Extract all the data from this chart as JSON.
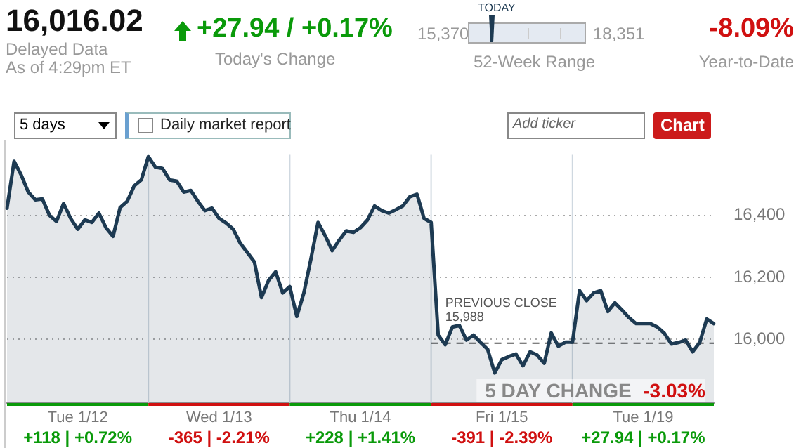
{
  "chart_data": {
    "type": "area",
    "title": "16,016.02",
    "annotations": [
      "Delayed Data",
      "As of 4:29pm ET",
      "+27.94 / +0.17%",
      "Today's Change",
      "15,370",
      "TODAY",
      "18,351",
      "52-Week Range",
      "-8.09%",
      "Year-to-Date",
      "5 days",
      "Daily market report",
      "Add ticker",
      "Chart",
      "5 DAY CHANGE",
      "-3.03%",
      "+118 | +0.72%",
      "-365 | -2.21%",
      "+228 | +1.41%",
      "-391 | -2.39%",
      "+27.94 | +0.17%"
    ],
    "categories": [
      null,
      null,
      null,
      null,
      null,
      null,
      null,
      null,
      null,
      null,
      "Tue 1/12",
      null,
      null,
      null,
      null,
      null,
      null,
      null,
      null,
      null,
      null,
      null,
      null,
      null,
      null,
      null,
      null,
      null,
      null,
      null,
      "Wed 1/13",
      null,
      null,
      null,
      null,
      null,
      null,
      null,
      null,
      null,
      null,
      null,
      null,
      null,
      null,
      null,
      null,
      null,
      null,
      null,
      "Thu 1/14",
      null,
      null,
      null,
      null,
      null,
      null,
      null,
      null,
      null,
      null,
      null,
      null,
      null,
      null,
      null,
      null,
      null,
      null,
      null,
      "Fri 1/15",
      null,
      null,
      null,
      null,
      null,
      null,
      null,
      null,
      null,
      null,
      null,
      null,
      null,
      null,
      null,
      null,
      null,
      null,
      null,
      "Tue 1/19",
      null,
      null,
      null,
      null,
      null,
      null,
      null,
      null,
      null,
      null
    ],
    "series": [
      {
        "color": "#1d3a52",
        "values": [
          16423,
          16574,
          16530,
          16475,
          16450,
          16453,
          16400,
          16380,
          16438,
          16390,
          16355,
          16385,
          16377,
          16407,
          16360,
          16332,
          16425,
          16445,
          16495,
          16514,
          16589,
          16555,
          16551,
          16514,
          16510,
          16475,
          16480,
          16445,
          16415,
          16423,
          16390,
          16375,
          16355,
          16310,
          16280,
          16250,
          16135,
          16190,
          16218,
          16150,
          16170,
          16074,
          16150,
          16260,
          16377,
          16335,
          16286,
          16320,
          16350,
          16345,
          16360,
          16385,
          16430,
          16415,
          16407,
          16418,
          16430,
          16460,
          16468,
          16390,
          16377,
          16014,
          15983,
          16040,
          16045,
          15998,
          16014,
          15990,
          15968,
          15892,
          15935,
          15945,
          15953,
          15915,
          15960,
          15950,
          15923,
          16021,
          15978,
          15991,
          15991,
          16157,
          16125,
          16150,
          16157,
          16090,
          16118,
          16095,
          16070,
          16051,
          16051,
          16051,
          16040,
          16020,
          15985,
          15990,
          15998,
          15960,
          15990,
          16066,
          16051
        ]
      }
    ],
    "ylim": [
      15795,
      16595
    ],
    "yticks": [
      {
        "value": 16000,
        "label": "16,000"
      },
      {
        "value": 16200,
        "label": "16,200"
      },
      {
        "value": 16400,
        "label": "16,400"
      }
    ],
    "ref_lines": [
      {
        "axis": "y",
        "value": 15988,
        "label": "PREVIOUS CLOSE 15,988",
        "color": "#555555",
        "line_style": "dashed"
      }
    ],
    "grid": "y",
    "legend": false,
    "marker": "none",
    "line_style": "solid"
  }
}
